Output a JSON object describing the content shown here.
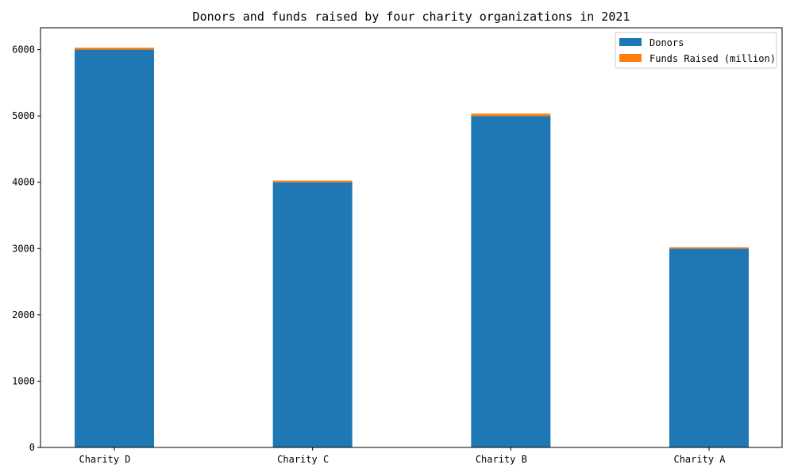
{
  "chart_data": {
    "type": "bar",
    "stacked": true,
    "title": "Donors and funds raised by four charity organizations in 2021",
    "xlabel": "",
    "ylabel": "",
    "categories": [
      "Charity D",
      "Charity C",
      "Charity B",
      "Charity A"
    ],
    "series": [
      {
        "name": "Donors",
        "values": [
          6000,
          4000,
          5000,
          3000
        ],
        "color": "#1f77b4"
      },
      {
        "name": "Funds Raised (million)",
        "values": [
          30,
          25,
          35,
          20
        ],
        "color": "#ff7f0e"
      }
    ],
    "ylim": [
      0,
      6330
    ],
    "yticks": [
      0,
      1000,
      2000,
      3000,
      4000,
      5000,
      6000
    ],
    "grid": false,
    "legend_position": "top-right"
  }
}
